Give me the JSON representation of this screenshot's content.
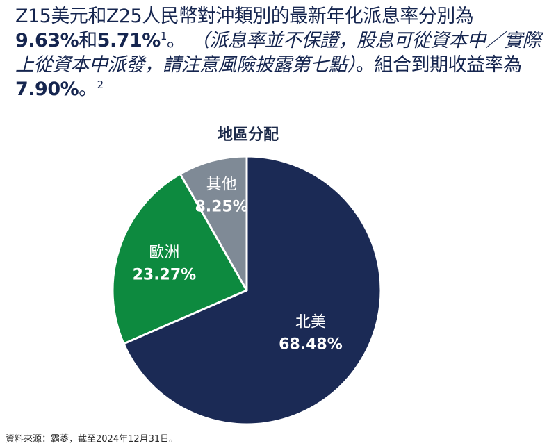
{
  "intro": {
    "line1": "Z15美元和Z25人民幣對沖類別的最新年化派息率分別為",
    "rate1": "9.63%",
    "and": "和",
    "rate2": "5.71%",
    "footnote1": "1",
    "sep1": "。",
    "note": "（派息率並不保證，股息可從資本中／實際上從資本中派發，請注意風險披露第七點）",
    "after_note": "。組合到期收益率為",
    "ytm": "7.90%",
    "sep2": "。",
    "footnote2": "2"
  },
  "source": "資料來源：霸菱，截至2024年12月31日。",
  "chart_data": {
    "type": "pie",
    "title": "地區分配",
    "slices": [
      {
        "label": "北美",
        "value": 68.48,
        "value_label": "68.48%",
        "color": "#1b2a55"
      },
      {
        "label": "歐洲",
        "value": 23.27,
        "value_label": "23.27%",
        "color": "#0d8a3f"
      },
      {
        "label": "其他",
        "value": 8.25,
        "value_label": "8.25%",
        "color": "#7f8a96"
      }
    ],
    "start": "12 o'clock",
    "direction": "clockwise",
    "label_color": "#ffffff"
  }
}
